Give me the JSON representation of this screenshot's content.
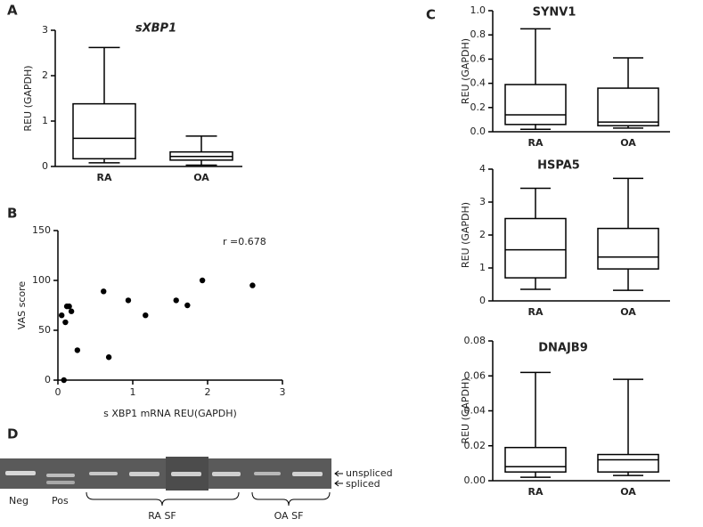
{
  "panel_labels": [
    "A",
    "B",
    "C",
    "D"
  ],
  "chart_data": [
    {
      "type": "box",
      "title": "sXBP1",
      "y_label": "REU (GAPDH)",
      "categories": [
        "RA",
        "OA"
      ],
      "boxes": [
        {
          "min": 0.08,
          "q1": 0.17,
          "median": 0.62,
          "q3": 1.38,
          "max": 2.62
        },
        {
          "min": 0.03,
          "q1": 0.14,
          "median": 0.22,
          "q3": 0.32,
          "max": 0.67
        }
      ],
      "ylim": [
        0,
        3
      ],
      "yticks": [
        0,
        1,
        2,
        3
      ],
      "color": "#000000"
    },
    {
      "type": "box",
      "title": "SYNV1",
      "y_label": "REU (GAPDH)",
      "categories": [
        "RA",
        "OA"
      ],
      "boxes": [
        {
          "min": 0.02,
          "q1": 0.06,
          "median": 0.14,
          "q3": 0.39,
          "max": 0.85
        },
        {
          "min": 0.03,
          "q1": 0.05,
          "median": 0.08,
          "q3": 0.36,
          "max": 0.61
        }
      ],
      "ylim": [
        0,
        1
      ],
      "yticks": [
        {
          "value": 0,
          "label": "0.0"
        },
        0.2,
        0.4,
        0.6,
        0.8,
        {
          "value": 1,
          "label": "1.0"
        }
      ],
      "color": "#000000"
    },
    {
      "type": "box",
      "title": "HSPA5",
      "y_label": "REU (GAPDH)",
      "categories": [
        "RA",
        "OA"
      ],
      "boxes": [
        {
          "min": 0.35,
          "q1": 0.7,
          "median": 1.55,
          "q3": 2.5,
          "max": 3.42
        },
        {
          "min": 0.32,
          "q1": 0.97,
          "median": 1.33,
          "q3": 2.2,
          "max": 3.72
        }
      ],
      "ylim": [
        0,
        4
      ],
      "yticks": [
        0,
        1,
        2,
        3,
        4
      ],
      "color": "#000000"
    },
    {
      "type": "box",
      "title": "DNAJB9",
      "y_label": "REU (GAPDH)",
      "categories": [
        "RA",
        "OA"
      ],
      "boxes": [
        {
          "min": 0.002,
          "q1": 0.005,
          "median": 0.008,
          "q3": 0.019,
          "max": 0.062
        },
        {
          "min": 0.003,
          "q1": 0.005,
          "median": 0.012,
          "q3": 0.015,
          "max": 0.058
        }
      ],
      "ylim": [
        0,
        0.08
      ],
      "yticks": [
        {
          "value": 0,
          "label": "0.00"
        },
        {
          "value": 0.02,
          "label": "0.02"
        },
        {
          "value": 0.04,
          "label": "0.04"
        },
        {
          "value": 0.06,
          "label": "0.06"
        },
        {
          "value": 0.08,
          "label": "0.08"
        }
      ],
      "color": "#000000"
    },
    {
      "type": "scatter",
      "x_label": "s XBP1 mRNA REU(GAPDH)",
      "y_label": "VAS score",
      "annotation": "r =0.678",
      "x": [
        0.05,
        0.08,
        0.1,
        0.12,
        0.15,
        0.18,
        0.26,
        0.61,
        0.68,
        0.94,
        1.17,
        1.58,
        1.73,
        1.93,
        2.6
      ],
      "values": [
        65,
        0,
        58,
        74,
        74,
        69,
        30,
        89,
        23,
        80,
        65,
        80,
        75,
        100,
        95
      ],
      "xlim": [
        0,
        3
      ],
      "xticks": [
        0,
        1,
        2,
        3
      ],
      "ylim": [
        0,
        150
      ],
      "yticks": [
        0,
        50,
        100,
        150
      ],
      "color": "#000000"
    }
  ],
  "gel": {
    "lanes": [
      "Neg",
      "Pos"
    ],
    "groups": [
      "RA SF",
      "OA SF"
    ],
    "bands": [
      "unspliced",
      "spliced"
    ]
  }
}
